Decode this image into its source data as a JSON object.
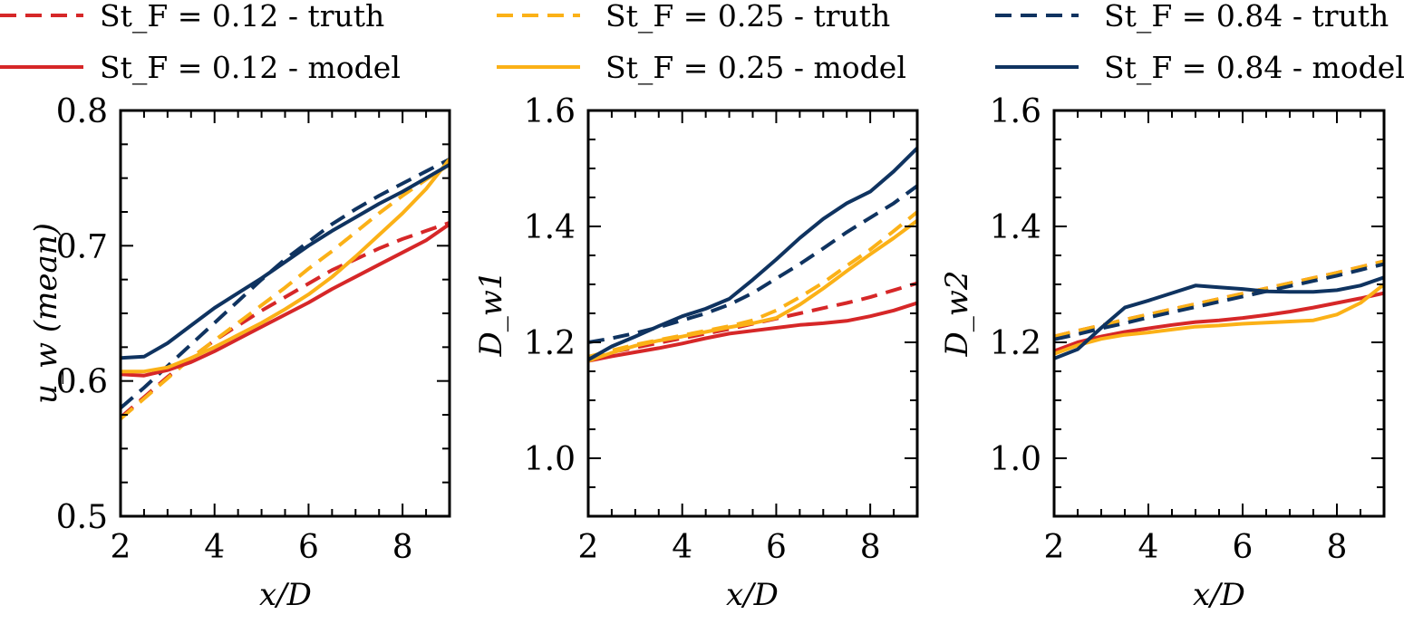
{
  "colors": {
    "st012": "#d62728",
    "st025": "#fbb117",
    "st084": "#0f3360"
  },
  "legend": [
    {
      "label": "St_F = 0.12 - truth",
      "series": "st012",
      "style": "truth"
    },
    {
      "label": "St_F = 0.25 - truth",
      "series": "st025",
      "style": "truth"
    },
    {
      "label": "St_F = 0.84 - truth",
      "series": "st084",
      "style": "truth"
    },
    {
      "label": "St_F = 0.12 - model",
      "series": "st012",
      "style": "model"
    },
    {
      "label": "St_F = 0.25 - model",
      "series": "st025",
      "style": "model"
    },
    {
      "label": "St_F = 0.84 - model",
      "series": "st084",
      "style": "model"
    }
  ],
  "chart_data": [
    {
      "type": "line",
      "title": "",
      "xlabel": "x/D",
      "ylabel": "u_w (mean)",
      "xlim": [
        2,
        9
      ],
      "ylim": [
        0.5,
        0.8
      ],
      "xticks": [
        2,
        4,
        6,
        8
      ],
      "yticks": [
        0.5,
        0.6,
        0.7,
        0.8
      ],
      "xtick_labels": [
        "2",
        "4",
        "6",
        "8"
      ],
      "ytick_labels": [
        "0.5",
        "0.6",
        "0.7",
        "0.8"
      ],
      "x": [
        2,
        2.5,
        3,
        3.5,
        4,
        4.5,
        5,
        5.5,
        6,
        6.5,
        7,
        7.5,
        8,
        8.5,
        9
      ],
      "series": [
        {
          "name": "St_F = 0.12 - truth",
          "color_key": "st012",
          "style": "dashed",
          "values": [
            0.573,
            0.588,
            0.603,
            0.617,
            0.63,
            0.641,
            0.652,
            0.662,
            0.672,
            0.682,
            0.69,
            0.698,
            0.705,
            0.711,
            0.717
          ]
        },
        {
          "name": "St_F = 0.25 - truth",
          "color_key": "st025",
          "style": "dashed",
          "values": [
            0.572,
            0.587,
            0.602,
            0.617,
            0.63,
            0.643,
            0.656,
            0.669,
            0.683,
            0.696,
            0.71,
            0.724,
            0.737,
            0.749,
            0.76
          ]
        },
        {
          "name": "St_F = 0.84 - truth",
          "color_key": "st084",
          "style": "dashed",
          "values": [
            0.58,
            0.595,
            0.611,
            0.627,
            0.643,
            0.659,
            0.675,
            0.69,
            0.703,
            0.716,
            0.727,
            0.737,
            0.746,
            0.755,
            0.764
          ]
        },
        {
          "name": "St_F = 0.12 - model",
          "color_key": "st012",
          "style": "solid",
          "values": [
            0.605,
            0.604,
            0.608,
            0.614,
            0.622,
            0.631,
            0.64,
            0.649,
            0.658,
            0.668,
            0.677,
            0.686,
            0.695,
            0.704,
            0.716
          ]
        },
        {
          "name": "St_F = 0.25 - model",
          "color_key": "st025",
          "style": "solid",
          "values": [
            0.607,
            0.607,
            0.61,
            0.617,
            0.625,
            0.634,
            0.643,
            0.653,
            0.664,
            0.677,
            0.692,
            0.708,
            0.724,
            0.742,
            0.764
          ]
        },
        {
          "name": "St_F = 0.84 - model",
          "color_key": "st084",
          "style": "solid",
          "values": [
            0.617,
            0.618,
            0.628,
            0.641,
            0.654,
            0.665,
            0.676,
            0.688,
            0.7,
            0.711,
            0.721,
            0.731,
            0.74,
            0.75,
            0.76
          ]
        }
      ]
    },
    {
      "type": "line",
      "title": "",
      "xlabel": "x/D",
      "ylabel": "D_w1",
      "xlim": [
        2,
        9
      ],
      "ylim": [
        0.9,
        1.6
      ],
      "xticks": [
        2,
        4,
        6,
        8
      ],
      "yticks": [
        1.0,
        1.2,
        1.4,
        1.6
      ],
      "xtick_labels": [
        "2",
        "4",
        "6",
        "8"
      ],
      "ytick_labels": [
        "1.0",
        "1.2",
        "1.4",
        "1.6"
      ],
      "x": [
        2,
        2.5,
        3,
        3.5,
        4,
        4.5,
        5,
        5.5,
        6,
        6.5,
        7,
        7.5,
        8,
        8.5,
        9
      ],
      "series": [
        {
          "name": "St_F = 0.12 - truth",
          "color_key": "st012",
          "style": "dashed",
          "values": [
            1.175,
            1.183,
            1.191,
            1.199,
            1.207,
            1.215,
            1.223,
            1.232,
            1.241,
            1.25,
            1.259,
            1.268,
            1.278,
            1.29,
            1.302
          ]
        },
        {
          "name": "St_F = 0.25 - truth",
          "color_key": "st025",
          "style": "dashed",
          "values": [
            1.175,
            1.186,
            1.196,
            1.204,
            1.212,
            1.22,
            1.228,
            1.238,
            1.255,
            1.278,
            1.303,
            1.332,
            1.36,
            1.392,
            1.425
          ]
        },
        {
          "name": "St_F = 0.84 - truth",
          "color_key": "st084",
          "style": "dashed",
          "values": [
            1.2,
            1.207,
            1.216,
            1.226,
            1.238,
            1.25,
            1.265,
            1.285,
            1.31,
            1.335,
            1.362,
            1.39,
            1.415,
            1.44,
            1.47
          ]
        },
        {
          "name": "St_F = 0.12 - model",
          "color_key": "st012",
          "style": "solid",
          "values": [
            1.168,
            1.176,
            1.183,
            1.19,
            1.198,
            1.207,
            1.215,
            1.22,
            1.225,
            1.23,
            1.233,
            1.237,
            1.245,
            1.255,
            1.268
          ]
        },
        {
          "name": "St_F = 0.25 - model",
          "color_key": "st025",
          "style": "solid",
          "values": [
            1.168,
            1.182,
            1.194,
            1.203,
            1.21,
            1.218,
            1.226,
            1.233,
            1.242,
            1.265,
            1.293,
            1.323,
            1.352,
            1.38,
            1.41
          ]
        },
        {
          "name": "St_F = 0.84 - model",
          "color_key": "st084",
          "style": "solid",
          "values": [
            1.17,
            1.193,
            1.21,
            1.228,
            1.245,
            1.258,
            1.275,
            1.308,
            1.343,
            1.38,
            1.413,
            1.44,
            1.46,
            1.495,
            1.535
          ]
        }
      ]
    },
    {
      "type": "line",
      "title": "",
      "xlabel": "x/D",
      "ylabel": "D_w2",
      "xlim": [
        2,
        9
      ],
      "ylim": [
        0.9,
        1.6
      ],
      "xticks": [
        2,
        4,
        6,
        8
      ],
      "yticks": [
        1.0,
        1.2,
        1.4,
        1.6
      ],
      "xtick_labels": [
        "2",
        "4",
        "6",
        "8"
      ],
      "ytick_labels": [
        "1.0",
        "1.2",
        "1.4",
        "1.6"
      ],
      "x": [
        2,
        2.5,
        3,
        3.5,
        4,
        4.5,
        5,
        5.5,
        6,
        6.5,
        7,
        7.5,
        8,
        8.5,
        9
      ],
      "series": [
        {
          "name": "St_F = 0.12 - truth",
          "color_key": "st012",
          "style": "dashed",
          "values": [
            1.21,
            1.22,
            1.229,
            1.239,
            1.248,
            1.257,
            1.266,
            1.275,
            1.284,
            1.293,
            1.302,
            1.311,
            1.32,
            1.33,
            1.34
          ]
        },
        {
          "name": "St_F = 0.25 - truth",
          "color_key": "st025",
          "style": "dashed",
          "values": [
            1.21,
            1.22,
            1.229,
            1.239,
            1.248,
            1.257,
            1.266,
            1.275,
            1.284,
            1.293,
            1.302,
            1.311,
            1.32,
            1.33,
            1.34
          ]
        },
        {
          "name": "St_F = 0.84 - truth",
          "color_key": "st084",
          "style": "dashed",
          "values": [
            1.205,
            1.214,
            1.224,
            1.233,
            1.243,
            1.252,
            1.261,
            1.27,
            1.279,
            1.288,
            1.297,
            1.306,
            1.315,
            1.325,
            1.335
          ]
        },
        {
          "name": "St_F = 0.12 - model",
          "color_key": "st012",
          "style": "solid",
          "values": [
            1.185,
            1.2,
            1.21,
            1.218,
            1.224,
            1.23,
            1.235,
            1.238,
            1.242,
            1.247,
            1.253,
            1.26,
            1.268,
            1.276,
            1.285
          ]
        },
        {
          "name": "St_F = 0.25 - model",
          "color_key": "st025",
          "style": "solid",
          "values": [
            1.18,
            1.195,
            1.206,
            1.213,
            1.217,
            1.222,
            1.227,
            1.229,
            1.232,
            1.234,
            1.236,
            1.238,
            1.248,
            1.268,
            1.3
          ]
        },
        {
          "name": "St_F = 0.84 - model",
          "color_key": "st084",
          "style": "solid",
          "values": [
            1.172,
            1.188,
            1.225,
            1.26,
            1.272,
            1.285,
            1.298,
            1.295,
            1.292,
            1.288,
            1.287,
            1.287,
            1.29,
            1.298,
            1.312
          ]
        }
      ]
    }
  ]
}
